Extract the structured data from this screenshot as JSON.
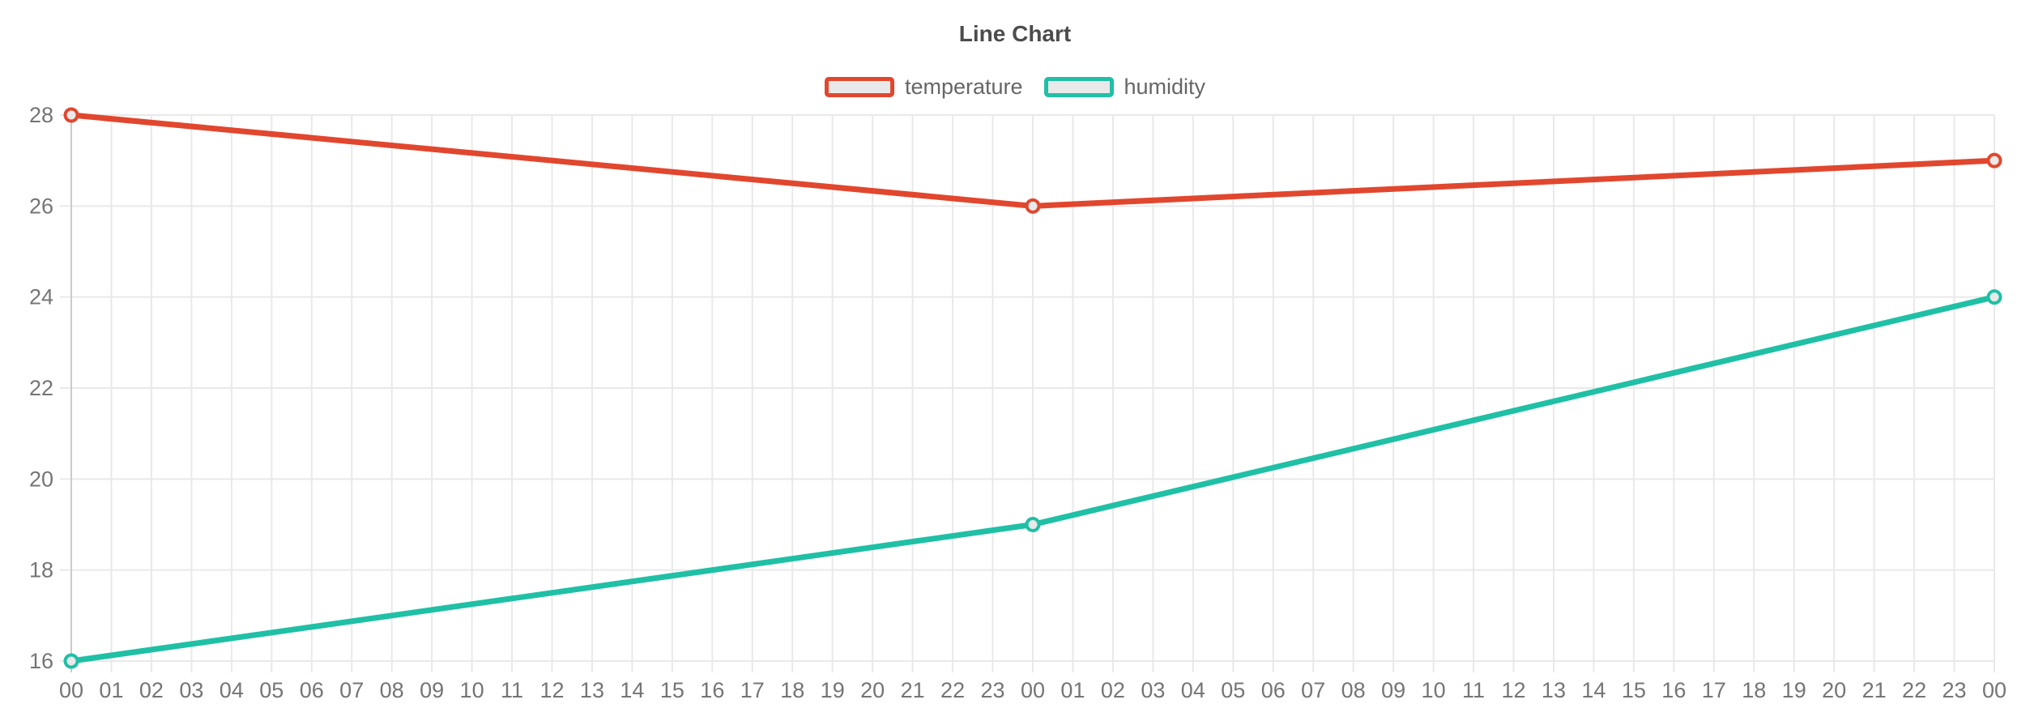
{
  "chart_data": {
    "type": "line",
    "title": "Line Chart",
    "xlabel": "",
    "ylabel": "",
    "x_tick_labels": [
      "00",
      "01",
      "02",
      "03",
      "04",
      "05",
      "06",
      "07",
      "08",
      "09",
      "10",
      "11",
      "12",
      "13",
      "14",
      "15",
      "16",
      "17",
      "18",
      "19",
      "20",
      "21",
      "22",
      "23",
      "00",
      "01",
      "02",
      "03",
      "04",
      "05",
      "06",
      "07",
      "08",
      "09",
      "10",
      "11",
      "12",
      "13",
      "14",
      "15",
      "16",
      "17",
      "18",
      "19",
      "20",
      "21",
      "22",
      "23",
      "00"
    ],
    "y_ticks": [
      16,
      18,
      20,
      22,
      24,
      26,
      28
    ],
    "y_range": [
      16,
      28
    ],
    "grid": true,
    "legend_position": "top",
    "series": [
      {
        "name": "temperature",
        "color": "#e1472e",
        "x_indices": [
          0,
          24,
          48
        ],
        "values": [
          28,
          26,
          27
        ]
      },
      {
        "name": "humidity",
        "color": "#1fc0a5",
        "x_indices": [
          0,
          24,
          48
        ],
        "values": [
          16,
          19,
          24
        ]
      }
    ],
    "marker_fill": "#e9e9e9",
    "theme": {
      "grid_color": "#e9e9e9",
      "first_vertical_grid_color": "#cbcbcb",
      "tick_text_color": "#757575",
      "title_color": "#4c4c4c",
      "legend_text_color": "#666666",
      "background": "#ffffff"
    }
  }
}
